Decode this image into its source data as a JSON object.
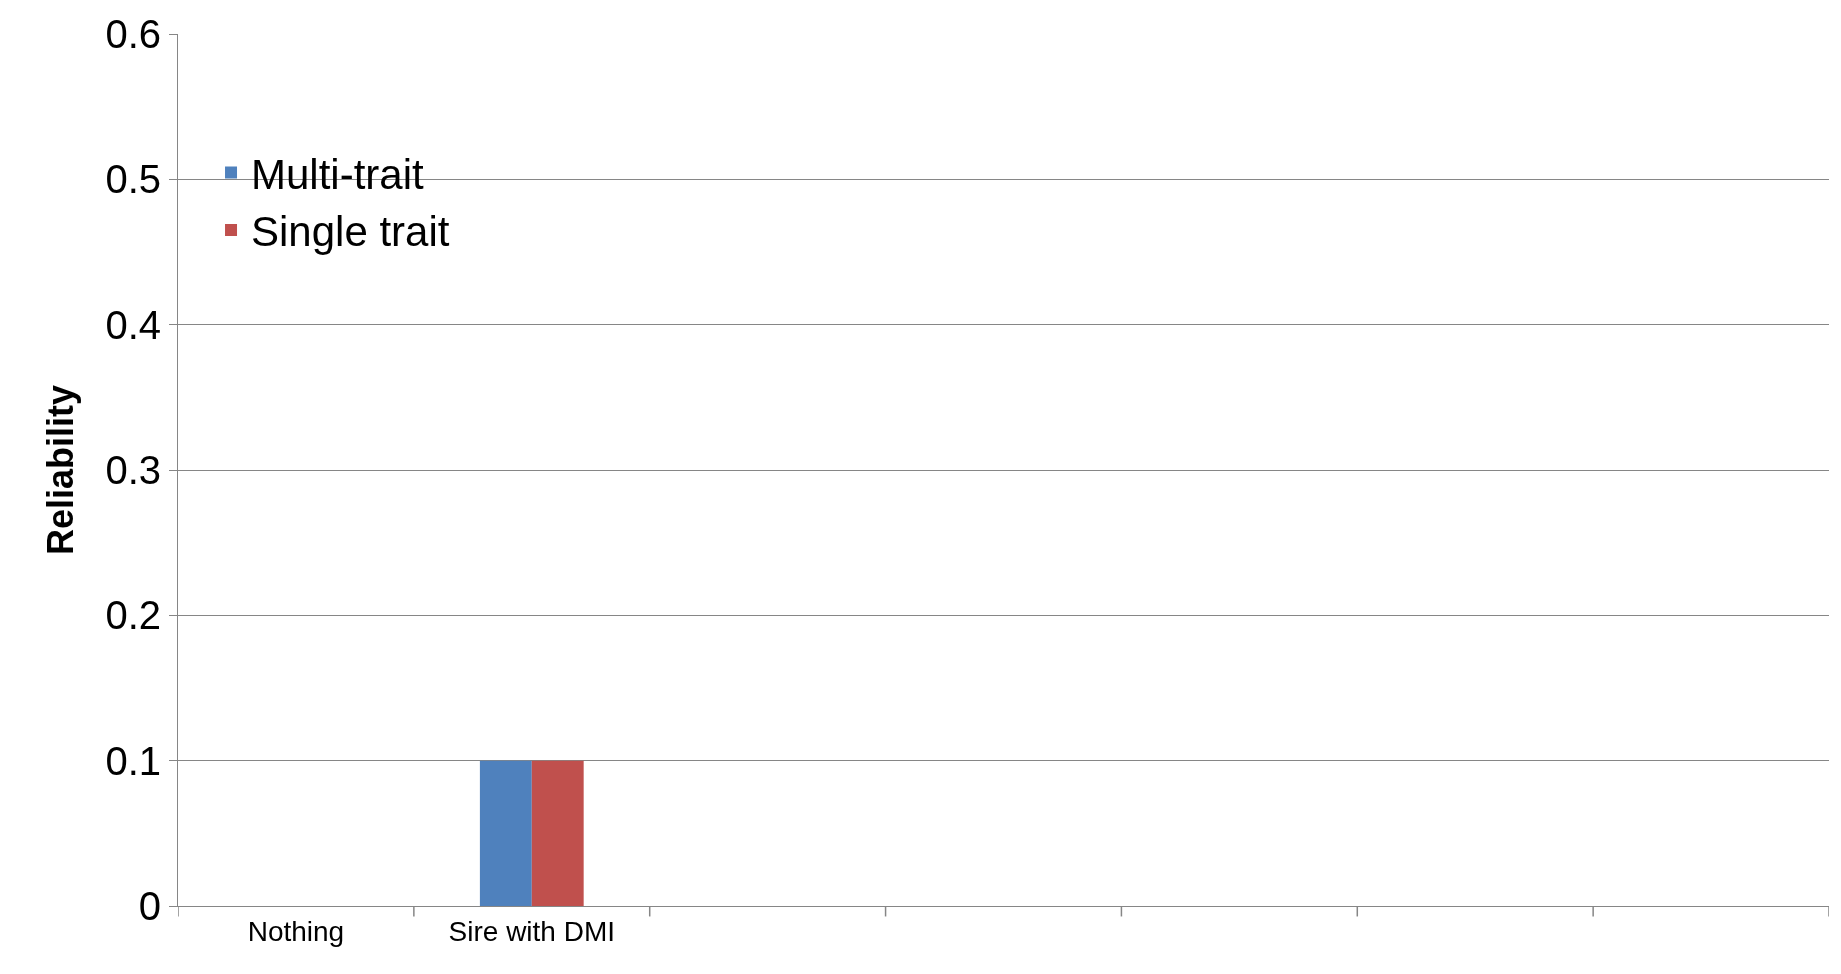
{
  "chart_data": {
    "type": "bar",
    "ylabel": "Reliability",
    "categories": [
      "Nothing",
      "Sire with DMI",
      null,
      null,
      null,
      null,
      null
    ],
    "series": [
      {
        "name": "Multi-trait",
        "color": "#4f81bd",
        "values": [
          null,
          0.1,
          null,
          null,
          null,
          null,
          null
        ]
      },
      {
        "name": "Single trait",
        "color": "#c0504d",
        "values": [
          null,
          0.1,
          null,
          null,
          null,
          null,
          null
        ]
      }
    ],
    "ylim": [
      0,
      0.6
    ],
    "yticks": [
      0,
      0.1,
      0.2,
      0.3,
      0.4,
      0.5,
      0.6
    ],
    "grid": "y",
    "legend": "top left"
  }
}
